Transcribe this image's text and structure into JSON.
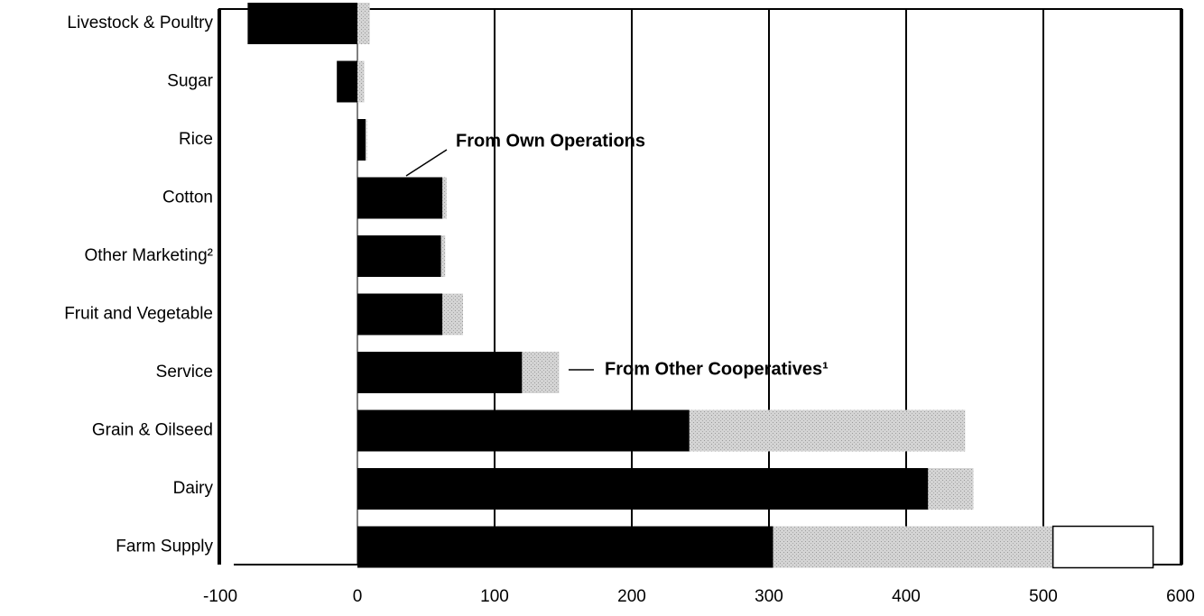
{
  "chart_data": {
    "type": "stacked-barh",
    "categories": [
      "Livestock & Poultry",
      "Sugar",
      "Rice",
      "Cotton",
      "Other Marketing²",
      "Fruit and Vegetable",
      "Service",
      "Grain & Oilseed",
      "Dairy",
      "Farm Supply"
    ],
    "series": [
      {
        "name": "From Own Operations",
        "color": "#000000",
        "values": [
          -80,
          -15,
          6,
          62,
          61,
          62,
          120,
          242,
          416,
          303
        ]
      },
      {
        "name": "From Other Cooperatives¹",
        "color": "#cccccc",
        "values": [
          9,
          5,
          1,
          3,
          3,
          15,
          27,
          201,
          33,
          204
        ]
      },
      {
        "color": "#ffffff",
        "values": [
          null,
          null,
          null,
          null,
          null,
          null,
          null,
          null,
          null,
          73
        ]
      }
    ],
    "xlim": [
      -100,
      600
    ],
    "xticks": [
      -100,
      0,
      100,
      200,
      300,
      400,
      500,
      600
    ],
    "grid": true
  }
}
